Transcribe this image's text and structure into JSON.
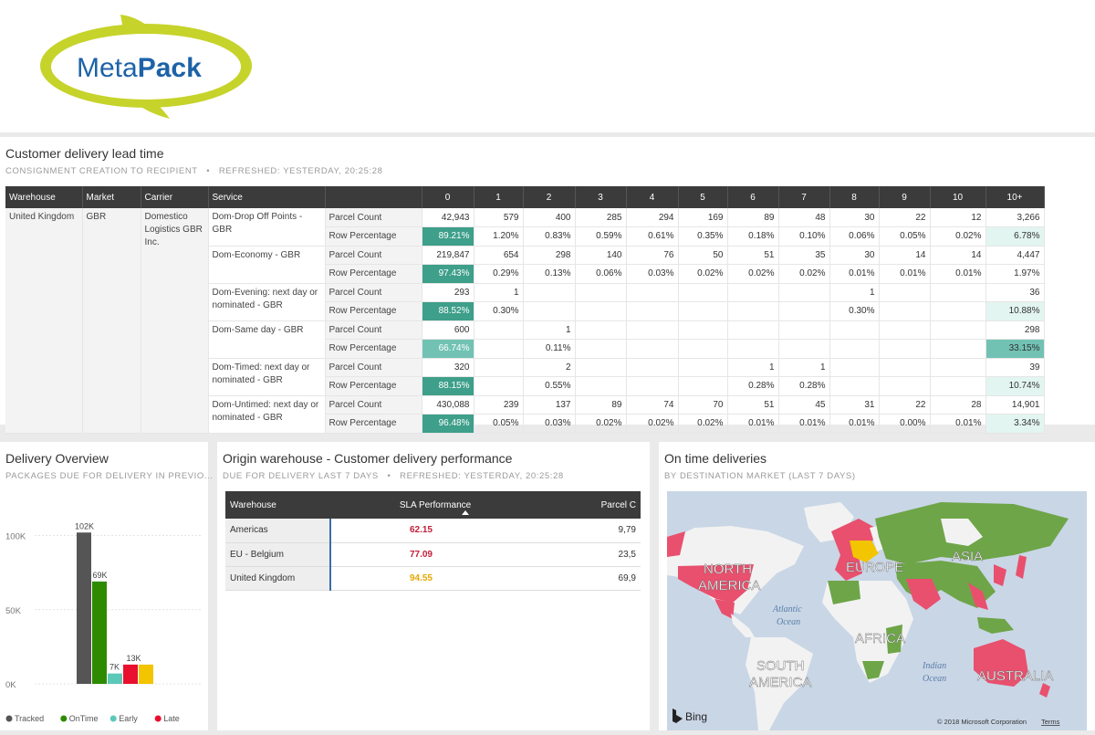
{
  "brand": {
    "logo_text_light": "Meta",
    "logo_text_bold": "Pack"
  },
  "lead_time": {
    "title": "Customer delivery lead time",
    "subtitle_left": "CONSIGNMENT CREATION TO RECIPIENT",
    "subtitle_sep": "•",
    "subtitle_right": "REFRESHED: YESTERDAY, 20:25:28",
    "headers": [
      "Warehouse",
      "Market",
      "Carrier",
      "Service",
      "",
      "0",
      "1",
      "2",
      "3",
      "4",
      "5",
      "6",
      "7",
      "8",
      "9",
      "10",
      "10+"
    ],
    "warehouse": "United Kingdom",
    "market": "GBR",
    "carrier": "Domestico Logistics GBR Inc.",
    "rows": [
      {
        "service": "Dom-Drop Off Points - GBR",
        "metric": "Parcel Count",
        "cells": [
          "42,943",
          "579",
          "400",
          "285",
          "294",
          "169",
          "89",
          "48",
          "30",
          "22",
          "12",
          "3,266"
        ]
      },
      {
        "service": "",
        "metric": "Row Percentage",
        "cells": [
          "89.21%",
          "1.20%",
          "0.83%",
          "0.59%",
          "0.61%",
          "0.35%",
          "0.18%",
          "0.10%",
          "0.06%",
          "0.05%",
          "0.02%",
          "6.78%"
        ]
      },
      {
        "service": "Dom-Economy - GBR",
        "metric": "Parcel Count",
        "cells": [
          "219,847",
          "654",
          "298",
          "140",
          "76",
          "50",
          "51",
          "35",
          "30",
          "14",
          "14",
          "4,447"
        ]
      },
      {
        "service": "",
        "metric": "Row Percentage",
        "cells": [
          "97.43%",
          "0.29%",
          "0.13%",
          "0.06%",
          "0.03%",
          "0.02%",
          "0.02%",
          "0.02%",
          "0.01%",
          "0.01%",
          "0.01%",
          "1.97%"
        ]
      },
      {
        "service": "Dom-Evening: next day or nominated - GBR",
        "metric": "Parcel Count",
        "cells": [
          "293",
          "1",
          "",
          "",
          "",
          "",
          "",
          "",
          "1",
          "",
          "",
          "36"
        ]
      },
      {
        "service": "",
        "metric": "Row Percentage",
        "cells": [
          "88.52%",
          "0.30%",
          "",
          "",
          "",
          "",
          "",
          "",
          "0.30%",
          "",
          "",
          "10.88%"
        ]
      },
      {
        "service": "Dom-Same day - GBR",
        "metric": "Parcel Count",
        "cells": [
          "600",
          "",
          "1",
          "",
          "",
          "",
          "",
          "",
          "",
          "",
          "",
          "298"
        ]
      },
      {
        "service": "",
        "metric": "Row Percentage",
        "cells": [
          "66.74%",
          "",
          "0.11%",
          "",
          "",
          "",
          "",
          "",
          "",
          "",
          "",
          "33.15%"
        ]
      },
      {
        "service": "Dom-Timed: next day or nominated - GBR",
        "metric": "Parcel Count",
        "cells": [
          "320",
          "",
          "2",
          "",
          "",
          "",
          "1",
          "1",
          "",
          "",
          "",
          "39"
        ]
      },
      {
        "service": "",
        "metric": "Row Percentage",
        "cells": [
          "88.15%",
          "",
          "0.55%",
          "",
          "",
          "",
          "0.28%",
          "0.28%",
          "",
          "",
          "",
          "10.74%"
        ]
      },
      {
        "service": "Dom-Untimed: next day or nominated - GBR",
        "metric": "Parcel Count",
        "cells": [
          "430,088",
          "239",
          "137",
          "89",
          "74",
          "70",
          "51",
          "45",
          "31",
          "22",
          "28",
          "14,901"
        ]
      },
      {
        "service": "",
        "metric": "Row Percentage",
        "cells": [
          "96.48%",
          "0.05%",
          "0.03%",
          "0.02%",
          "0.02%",
          "0.02%",
          "0.01%",
          "0.01%",
          "0.01%",
          "0.00%",
          "0.01%",
          "3.34%"
        ]
      }
    ],
    "highlight_colors": {
      "dark": "#3e9f8a",
      "mid": "#72c2b4",
      "light": "#e2f5f1"
    }
  },
  "overview": {
    "title": "Delivery Overview",
    "subtitle": "PACKAGES DUE FOR DELIVERY IN PREVIO...",
    "chart_data": {
      "type": "bar",
      "categories": [
        "Tracked",
        "OnTime",
        "Early",
        "Late",
        ""
      ],
      "values": [
        102000,
        69000,
        7000,
        13000,
        13000
      ],
      "data_labels": [
        "102K",
        "69K",
        "7K",
        "13K",
        ""
      ],
      "colors": [
        "#555555",
        "#2e8b00",
        "#5cc8b8",
        "#e8102e",
        "#f2c500"
      ],
      "y_ticks": [
        "100K",
        "50K",
        "0K"
      ],
      "y_tick_values": [
        100000,
        50000,
        0
      ],
      "ylim": [
        0,
        120000
      ],
      "legend": [
        "Tracked",
        "OnTime",
        "Early",
        "Late"
      ],
      "legend_placement": "bottom"
    }
  },
  "origin": {
    "title": "Origin warehouse - Customer delivery performance",
    "subtitle_left": "DUE FOR DELIVERY LAST 7 DAYS",
    "subtitle_sep": "•",
    "subtitle_right": "REFRESHED: YESTERDAY, 20:25:28",
    "headers": {
      "warehouse": "Warehouse",
      "sla": "SLA Performance",
      "parcel": "Parcel C"
    },
    "rows": [
      {
        "warehouse": "Americas",
        "sla": "62.15",
        "sla_color": "#c0203a",
        "parcel": "9,79"
      },
      {
        "warehouse": "EU - Belgium",
        "sla": "77.09",
        "sla_color": "#c0203a",
        "parcel": "23,5"
      },
      {
        "warehouse": "United Kingdom",
        "sla": "94.55",
        "sla_color": "#e5a800",
        "parcel": "69,9"
      }
    ]
  },
  "ontime": {
    "title": "On time deliveries",
    "subtitle": "BY DESTINATION MARKET (LAST 7 DAYS)",
    "map_labels": [
      "NORTH",
      "AMERICA",
      "EUROPE",
      "ASIA",
      "AFRICA",
      "SOUTH",
      "AMERICA",
      "AUSTRALIA",
      "Atlantic",
      "Ocean",
      "Indian",
      "Ocean"
    ],
    "bing": "Bing",
    "copyright": "© 2018 Microsoft Corporation",
    "terms": "Terms",
    "colors": {
      "ocean": "#c9d6e6",
      "land": "#f2f2f2",
      "good": "#6ea548",
      "bad": "#e8506e"
    }
  }
}
